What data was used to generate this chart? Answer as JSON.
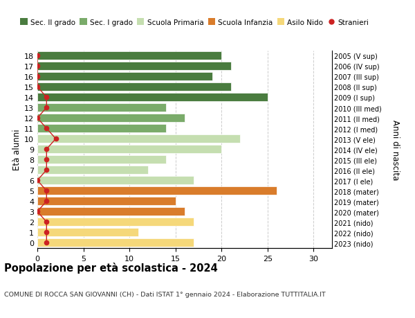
{
  "ages": [
    18,
    17,
    16,
    15,
    14,
    13,
    12,
    11,
    10,
    9,
    8,
    7,
    6,
    5,
    4,
    3,
    2,
    1,
    0
  ],
  "years": [
    "2005 (V sup)",
    "2006 (IV sup)",
    "2007 (III sup)",
    "2008 (II sup)",
    "2009 (I sup)",
    "2010 (III med)",
    "2011 (II med)",
    "2012 (I med)",
    "2013 (V ele)",
    "2014 (IV ele)",
    "2015 (III ele)",
    "2016 (II ele)",
    "2017 (I ele)",
    "2018 (mater)",
    "2019 (mater)",
    "2020 (mater)",
    "2021 (nido)",
    "2022 (nido)",
    "2023 (nido)"
  ],
  "values": [
    20,
    21,
    19,
    21,
    25,
    14,
    16,
    14,
    22,
    20,
    14,
    12,
    17,
    26,
    15,
    16,
    17,
    11,
    17
  ],
  "bar_colors": [
    "#4a7c3f",
    "#4a7c3f",
    "#4a7c3f",
    "#4a7c3f",
    "#4a7c3f",
    "#7aab6a",
    "#7aab6a",
    "#7aab6a",
    "#c5deb0",
    "#c5deb0",
    "#c5deb0",
    "#c5deb0",
    "#c5deb0",
    "#d97c2b",
    "#d97c2b",
    "#d97c2b",
    "#f5d87a",
    "#f5d87a",
    "#f5d87a"
  ],
  "stranieri_values": [
    0,
    0,
    0,
    0,
    1,
    1,
    0,
    1,
    2,
    1,
    1,
    1,
    0,
    1,
    1,
    0,
    1,
    1,
    1
  ],
  "title": "Popolazione per età scolastica - 2024",
  "subtitle": "COMUNE DI ROCCA SAN GIOVANNI (CH) - Dati ISTAT 1° gennaio 2024 - Elaborazione TUTTITALIA.IT",
  "ylabel": "Età alunni",
  "ylabel2": "Anni di nascita",
  "xlim": [
    0,
    32
  ],
  "xticks": [
    0,
    5,
    10,
    15,
    20,
    25,
    30
  ],
  "legend_labels": [
    "Sec. II grado",
    "Sec. I grado",
    "Scuola Primaria",
    "Scuola Infanzia",
    "Asilo Nido",
    "Stranieri"
  ],
  "legend_colors": [
    "#4a7c3f",
    "#7aab6a",
    "#c5deb0",
    "#d97c2b",
    "#f5d87a",
    "#cc2222"
  ],
  "stranieri_color": "#cc2222",
  "bg_color": "#ffffff",
  "grid_color": "#cccccc"
}
